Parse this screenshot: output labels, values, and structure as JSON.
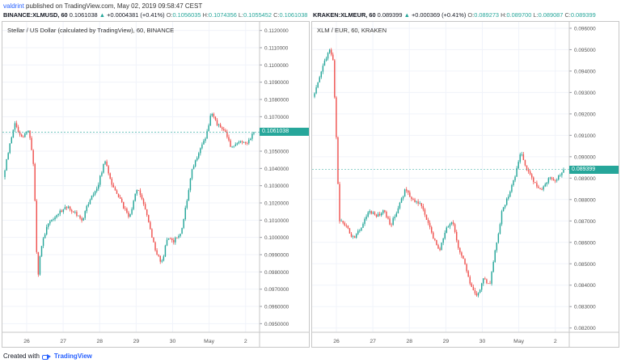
{
  "header": {
    "author": "valdrint",
    "published_text": "published on TradingView.com, May 02, 2019 09:58:47 CEST"
  },
  "left_chart": {
    "symbol": "BINANCE:XLMUSD, 60",
    "last": "0.1061038",
    "change": "+0.0004381 (+0.41%)",
    "o_label": "O:",
    "o_val": "0.1056035",
    "h_label": "H:",
    "h_val": "0.1074356",
    "l_label": "L:",
    "l_val": "0.1055452",
    "c_label": "C:",
    "c_val": "0.1061038",
    "legend": "Stellar / US Dollar (calculated by TradingView), 60, BINANCE",
    "price_tag": "0.1061038"
  },
  "right_chart": {
    "symbol": "KRAKEN:XLMEUR, 60",
    "last": "0.089399",
    "change": "+0.000369 (+0.41%)",
    "o_label": "O:",
    "o_val": "0.089273",
    "h_label": "H:",
    "h_val": "0.089700",
    "l_label": "L:",
    "l_val": "0.089087",
    "c_label": "C:",
    "c_val": "0.089399",
    "legend": "XLM / EUR, 60, KRAKEN",
    "price_tag": "0.089399"
  },
  "footer": {
    "created_with": "Created with",
    "brand": "TradingView"
  },
  "colors": {
    "up": "#26a69a",
    "down": "#ef5350",
    "grid": "#f0f3fa",
    "brand": "#2962ff"
  },
  "chart_data": [
    {
      "type": "candlestick",
      "title": "Stellar / US Dollar (calculated by TradingView), 60, BINANCE",
      "x_tick_labels": [
        "26",
        "27",
        "28",
        "29",
        "30",
        "May",
        "2"
      ],
      "y_tick_labels": [
        "0.1120000",
        "0.1110000",
        "0.1100000",
        "0.1090000",
        "0.1080000",
        "0.1070000",
        "0.1060000",
        "0.1050000",
        "0.1040000",
        "0.1030000",
        "0.1020000",
        "0.1010000",
        "0.1000000",
        "0.0990000",
        "0.0980000",
        "0.0970000",
        "0.0960000",
        "0.0950000"
      ],
      "ylim": [
        0.0945,
        0.1125
      ],
      "last_price": 0.1061038,
      "close_path": [
        [
          0.0,
          0.1035
        ],
        [
          0.5,
          0.1052
        ],
        [
          1.0,
          0.1066
        ],
        [
          1.5,
          0.1058
        ],
        [
          2.2,
          0.1062
        ],
        [
          2.6,
          0.104
        ],
        [
          2.9,
          0.0975
        ],
        [
          3.2,
          0.0995
        ],
        [
          3.8,
          0.1008
        ],
        [
          4.5,
          0.1012
        ],
        [
          5.2,
          0.1018
        ],
        [
          6.0,
          0.1015
        ],
        [
          6.7,
          0.101
        ],
        [
          7.3,
          0.1022
        ],
        [
          8.0,
          0.103
        ],
        [
          8.6,
          0.1045
        ],
        [
          9.1,
          0.1032
        ],
        [
          9.6,
          0.1026
        ],
        [
          10.2,
          0.1017
        ],
        [
          10.7,
          0.1012
        ],
        [
          11.3,
          0.1028
        ],
        [
          11.8,
          0.1022
        ],
        [
          12.4,
          0.1005
        ],
        [
          12.9,
          0.0992
        ],
        [
          13.4,
          0.0985
        ],
        [
          13.9,
          0.1
        ],
        [
          14.4,
          0.0998
        ],
        [
          15.0,
          0.1002
        ],
        [
          15.5,
          0.102
        ],
        [
          16.0,
          0.104
        ],
        [
          16.6,
          0.105
        ],
        [
          17.1,
          0.1058
        ],
        [
          17.6,
          0.1072
        ],
        [
          18.1,
          0.1066
        ],
        [
          18.7,
          0.1062
        ],
        [
          19.3,
          0.1052
        ],
        [
          19.9,
          0.1055
        ],
        [
          20.6,
          0.1055
        ],
        [
          21.2,
          0.1061
        ]
      ]
    },
    {
      "type": "candlestick",
      "title": "XLM / EUR, 60, KRAKEN",
      "x_tick_labels": [
        "26",
        "27",
        "28",
        "29",
        "30",
        "May",
        "2"
      ],
      "y_tick_labels": [
        "0.096000",
        "0.095000",
        "0.094000",
        "0.093000",
        "0.092000",
        "0.091000",
        "0.090000",
        "0.089000",
        "0.088000",
        "0.087000",
        "0.086000",
        "0.085000",
        "0.084000",
        "0.083000",
        "0.082000"
      ],
      "ylim": [
        0.0818,
        0.0963
      ],
      "last_price": 0.089399,
      "close_path": [
        [
          0.0,
          0.0928
        ],
        [
          0.4,
          0.0935
        ],
        [
          0.9,
          0.0944
        ],
        [
          1.3,
          0.095
        ],
        [
          1.6,
          0.0945
        ],
        [
          1.9,
          0.0905
        ],
        [
          2.1,
          0.087
        ],
        [
          2.6,
          0.0868
        ],
        [
          3.2,
          0.0862
        ],
        [
          3.8,
          0.0866
        ],
        [
          4.5,
          0.0875
        ],
        [
          5.1,
          0.0872
        ],
        [
          5.6,
          0.0875
        ],
        [
          6.2,
          0.0868
        ],
        [
          6.8,
          0.0876
        ],
        [
          7.4,
          0.0885
        ],
        [
          7.9,
          0.088
        ],
        [
          8.6,
          0.0878
        ],
        [
          9.1,
          0.087
        ],
        [
          9.6,
          0.0862
        ],
        [
          10.1,
          0.0856
        ],
        [
          10.6,
          0.0866
        ],
        [
          11.1,
          0.087
        ],
        [
          11.6,
          0.0858
        ],
        [
          12.1,
          0.085
        ],
        [
          12.6,
          0.084
        ],
        [
          13.1,
          0.0834
        ],
        [
          13.6,
          0.0843
        ],
        [
          14.1,
          0.084
        ],
        [
          14.6,
          0.0858
        ],
        [
          15.1,
          0.0875
        ],
        [
          15.6,
          0.0882
        ],
        [
          16.1,
          0.089
        ],
        [
          16.6,
          0.0902
        ],
        [
          17.1,
          0.0894
        ],
        [
          17.6,
          0.0888
        ],
        [
          18.2,
          0.0884
        ],
        [
          18.8,
          0.089
        ],
        [
          19.4,
          0.0889
        ],
        [
          20.0,
          0.0894
        ]
      ]
    }
  ]
}
